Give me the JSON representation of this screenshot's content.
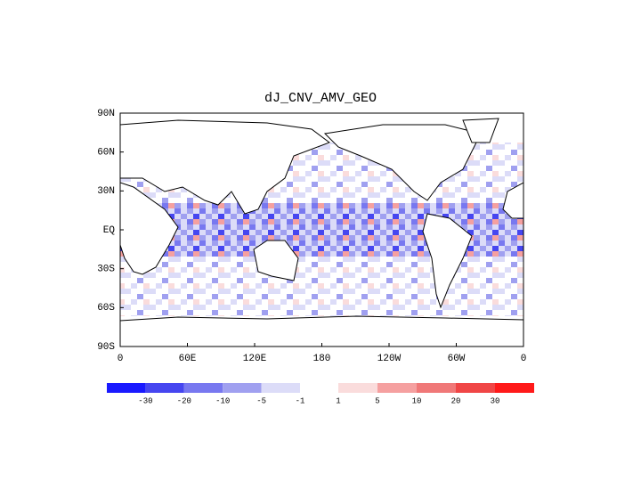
{
  "title": "dJ_CNV_AMV_GEO",
  "lat_labels": [
    "90N",
    "60N",
    "30N",
    "EQ",
    "30S",
    "60S",
    "90S"
  ],
  "lon_labels": [
    "0",
    "60E",
    "120E",
    "180",
    "120W",
    "60W",
    "0"
  ],
  "colorbar": {
    "colors": [
      "#1a1aff",
      "#4646f0",
      "#7878f0",
      "#a0a0f0",
      "#dcdcf8",
      "#fadcdc",
      "#f5a0a0",
      "#f07878",
      "#f04646",
      "#ff1a1a"
    ],
    "labels": [
      "-30",
      "-20",
      "-10",
      "-5",
      "-1",
      "1",
      "5",
      "10",
      "20",
      "30"
    ]
  }
}
